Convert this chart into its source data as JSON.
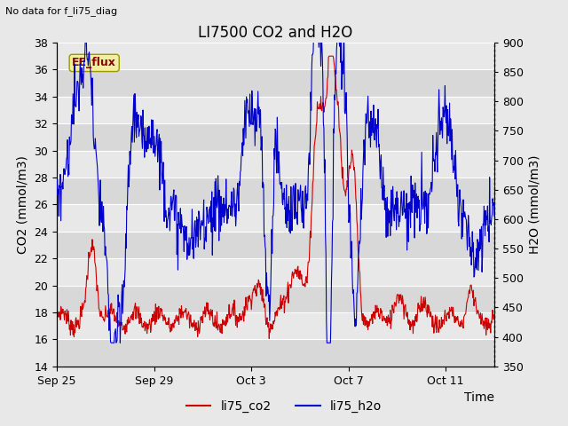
{
  "title": "LI7500 CO2 and H2O",
  "xlabel": "Time",
  "ylabel_left": "CO2 (mmol/m3)",
  "ylabel_right": "H2O (mmol/m3)",
  "ylim_left": [
    14,
    38
  ],
  "ylim_right": [
    350,
    900
  ],
  "yticks_left": [
    14,
    16,
    18,
    20,
    22,
    24,
    26,
    28,
    30,
    32,
    34,
    36,
    38
  ],
  "yticks_right": [
    350,
    400,
    450,
    500,
    550,
    600,
    650,
    700,
    750,
    800,
    850,
    900
  ],
  "color_co2": "#cc0000",
  "color_h2o": "#0000cc",
  "background_color": "#e8e8e8",
  "plot_bg_color": "#e8e8e8",
  "no_data_text": "No data for f_li75_diag",
  "ee_flux_label": "EE_flux",
  "legend_labels": [
    "li75_co2",
    "li75_h2o"
  ],
  "title_fontsize": 12,
  "axis_label_fontsize": 10,
  "tick_fontsize": 9,
  "legend_fontsize": 10,
  "xtick_dates": [
    "Sep 25",
    "Sep 29",
    "Oct 3",
    "Oct 7",
    "Oct 11"
  ],
  "xtick_positions_days": [
    0,
    4,
    8,
    12,
    16
  ]
}
